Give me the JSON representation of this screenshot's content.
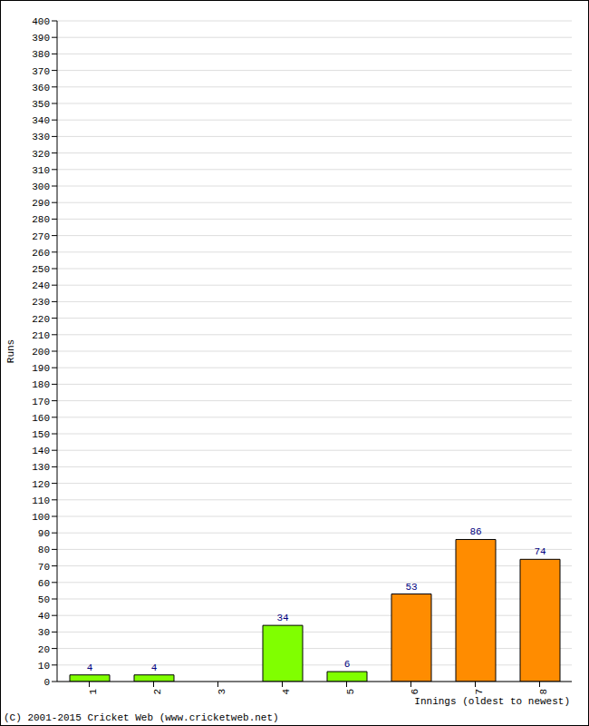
{
  "chart_data": {
    "type": "bar",
    "categories": [
      "1",
      "2",
      "3",
      "4",
      "5",
      "6",
      "7",
      "8"
    ],
    "values": [
      4,
      4,
      0,
      34,
      6,
      53,
      86,
      74
    ],
    "colors": [
      "#80ff00",
      "#80ff00",
      "#80ff00",
      "#80ff00",
      "#80ff00",
      "#ff8c00",
      "#ff8c00",
      "#ff8c00"
    ],
    "x_label": "Innings (oldest to newest)",
    "y_label": "Runs",
    "annotations": [
      "(C) 2001-2015 Cricket Web (www.cricketweb.net)"
    ],
    "ylim": [
      0,
      400
    ],
    "yticks": [
      0,
      10,
      20,
      30,
      40,
      50,
      60,
      70,
      80,
      90,
      100,
      110,
      120,
      130,
      140,
      150,
      160,
      170,
      180,
      190,
      200,
      210,
      220,
      230,
      240,
      250,
      260,
      270,
      280,
      290,
      300,
      310,
      320,
      330,
      340,
      350,
      360,
      370,
      380,
      390,
      400
    ],
    "grid": true,
    "data_labels": true
  }
}
